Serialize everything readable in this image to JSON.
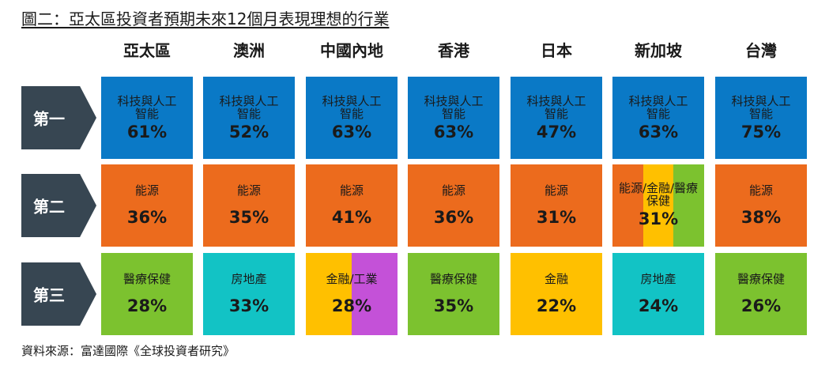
{
  "title": "圖二：亞太區投資者預期未來12個月表現理想的行業",
  "source": "資料來源：富達國際《全球投資者研究》",
  "colors": {
    "tech": "#0a79c6",
    "energy": "#ec6b1d",
    "health": "#7cc22f",
    "property": "#12c3c5",
    "finance": "#ffc000",
    "industry": "#c451d8",
    "row_label": "#374652"
  },
  "chart_data": {
    "type": "table",
    "columns": [
      "亞太區",
      "澳洲",
      "中國內地",
      "香港",
      "日本",
      "新加坡",
      "台灣"
    ],
    "rows": [
      {
        "label": "第一",
        "cells": [
          {
            "sector": "科技與人工智能",
            "value": "61%",
            "colors": [
              "tech"
            ]
          },
          {
            "sector": "科技與人工智能",
            "value": "52%",
            "colors": [
              "tech"
            ]
          },
          {
            "sector": "科技與人工智能",
            "value": "63%",
            "colors": [
              "tech"
            ]
          },
          {
            "sector": "科技與人工智能",
            "value": "63%",
            "colors": [
              "tech"
            ]
          },
          {
            "sector": "科技與人工智能",
            "value": "47%",
            "colors": [
              "tech"
            ]
          },
          {
            "sector": "科技與人工智能",
            "value": "63%",
            "colors": [
              "tech"
            ]
          },
          {
            "sector": "科技與人工智能",
            "value": "75%",
            "colors": [
              "tech"
            ]
          }
        ]
      },
      {
        "label": "第二",
        "cells": [
          {
            "sector": "能源",
            "value": "36%",
            "colors": [
              "energy"
            ]
          },
          {
            "sector": "能源",
            "value": "35%",
            "colors": [
              "energy"
            ]
          },
          {
            "sector": "能源",
            "value": "41%",
            "colors": [
              "energy"
            ]
          },
          {
            "sector": "能源",
            "value": "36%",
            "colors": [
              "energy"
            ]
          },
          {
            "sector": "能源",
            "value": "31%",
            "colors": [
              "energy"
            ]
          },
          {
            "sector": "能源/金融/醫療保健",
            "value": "31%",
            "colors": [
              "energy",
              "finance",
              "health"
            ]
          },
          {
            "sector": "能源",
            "value": "38%",
            "colors": [
              "energy"
            ]
          }
        ]
      },
      {
        "label": "第三",
        "cells": [
          {
            "sector": "醫療保健",
            "value": "28%",
            "colors": [
              "health"
            ]
          },
          {
            "sector": "房地產",
            "value": "33%",
            "colors": [
              "property"
            ]
          },
          {
            "sector": "金融/工業",
            "value": "28%",
            "colors": [
              "finance",
              "industry"
            ]
          },
          {
            "sector": "醫療保健",
            "value": "35%",
            "colors": [
              "health"
            ]
          },
          {
            "sector": "金融",
            "value": "22%",
            "colors": [
              "finance"
            ]
          },
          {
            "sector": "房地產",
            "value": "24%",
            "colors": [
              "property"
            ]
          },
          {
            "sector": "醫療保健",
            "value": "26%",
            "colors": [
              "health"
            ]
          }
        ]
      }
    ]
  }
}
